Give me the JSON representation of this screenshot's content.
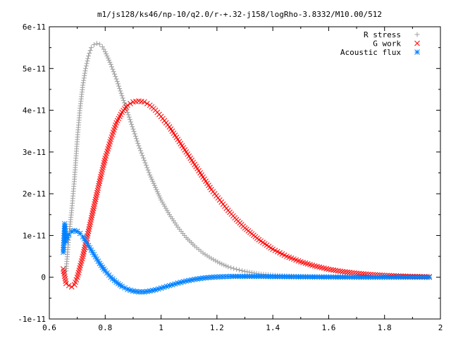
{
  "chart_data": {
    "type": "scatter",
    "title": "m1/js128/ks46/np-10/q2.0/r-+.32-j158/logRho-3.8332/M10.00/512",
    "xlabel": "",
    "ylabel": "",
    "xlim": [
      0.6,
      2.0
    ],
    "ylim": [
      -1e-11,
      6e-11
    ],
    "x_ticks": [
      0.6,
      0.8,
      1.0,
      1.2,
      1.4,
      1.6,
      1.8,
      2.0
    ],
    "x_tick_labels": [
      "0.6",
      "0.8",
      "1",
      "1.2",
      "1.4",
      "1.6",
      "1.8",
      "2"
    ],
    "y_ticks": [
      -1e-11,
      0,
      1e-11,
      2e-11,
      3e-11,
      4e-11,
      5e-11,
      6e-11
    ],
    "y_tick_labels": [
      "-1e-11",
      "0",
      "1e-11",
      "2e-11",
      "3e-11",
      "4e-11",
      "5e-11",
      "6e-11"
    ],
    "grid": false,
    "legend_position": "top-right",
    "series": [
      {
        "name": "R stress",
        "marker": "plus",
        "color": "#a0a0a0",
        "x": [
          0.65,
          0.66,
          0.67,
          0.68,
          0.69,
          0.7,
          0.71,
          0.72,
          0.73,
          0.74,
          0.75,
          0.76,
          0.77,
          0.78,
          0.79,
          0.8,
          0.82,
          0.84,
          0.86,
          0.88,
          0.9,
          0.92,
          0.94,
          0.96,
          0.98,
          1.0,
          1.03,
          1.06,
          1.09,
          1.12,
          1.15,
          1.18,
          1.21,
          1.24,
          1.27,
          1.3,
          1.35,
          1.4,
          1.45,
          1.5,
          1.55,
          1.6,
          1.65,
          1.7,
          1.75,
          1.8,
          1.85,
          1.9,
          1.96
        ],
        "y": [
          1e-12,
          1.5e-12,
          1e-11,
          1.6e-11,
          2.35e-11,
          3.3e-11,
          4.05e-11,
          4.6e-11,
          5e-11,
          5.3e-11,
          5.5e-11,
          5.57e-11,
          5.6e-11,
          5.58e-11,
          5.52e-11,
          5.4e-11,
          5.1e-11,
          4.75e-11,
          4.35e-11,
          3.95e-11,
          3.55e-11,
          3.15e-11,
          2.8e-11,
          2.45e-11,
          2.15e-11,
          1.85e-11,
          1.5e-11,
          1.2e-11,
          9.5e-12,
          7.5e-12,
          5.8e-12,
          4.5e-12,
          3.4e-12,
          2.5e-12,
          1.9e-12,
          1.4e-12,
          8e-13,
          5e-13,
          3e-13,
          2e-13,
          1.2e-13,
          8e-14,
          5e-14,
          3e-14,
          2e-14,
          1.5e-14,
          1e-14,
          5e-15,
          2e-15
        ]
      },
      {
        "name": "G work",
        "marker": "cross",
        "color": "#ff0000",
        "x": [
          0.65,
          0.66,
          0.67,
          0.68,
          0.69,
          0.7,
          0.72,
          0.74,
          0.76,
          0.78,
          0.8,
          0.82,
          0.84,
          0.86,
          0.88,
          0.9,
          0.92,
          0.94,
          0.96,
          0.98,
          1.0,
          1.03,
          1.06,
          1.09,
          1.12,
          1.15,
          1.18,
          1.21,
          1.24,
          1.27,
          1.3,
          1.35,
          1.4,
          1.45,
          1.5,
          1.55,
          1.6,
          1.65,
          1.7,
          1.75,
          1.8,
          1.85,
          1.9,
          1.96
        ],
        "y": [
          2e-12,
          -1.5e-12,
          -2e-12,
          -2.3e-12,
          -1.8e-12,
          0.0,
          5e-12,
          1.1e-11,
          1.7e-11,
          2.3e-11,
          2.85e-11,
          3.3e-11,
          3.7e-11,
          3.95e-11,
          4.12e-11,
          4.2e-11,
          4.22e-11,
          4.2e-11,
          4.12e-11,
          4e-11,
          3.85e-11,
          3.6e-11,
          3.3e-11,
          3e-11,
          2.7e-11,
          2.4e-11,
          2.1e-11,
          1.85e-11,
          1.6e-11,
          1.38e-11,
          1.18e-11,
          9e-12,
          6.7e-12,
          5e-12,
          3.7e-12,
          2.7e-12,
          1.9e-12,
          1.35e-12,
          9.5e-13,
          6.5e-13,
          4.5e-13,
          3e-13,
          2e-13,
          1.2e-13
        ]
      },
      {
        "name": "Acoustic flux",
        "marker": "star",
        "color": "#0080ff",
        "x": [
          0.65,
          0.655,
          0.66,
          0.665,
          0.67,
          0.68,
          0.69,
          0.7,
          0.71,
          0.72,
          0.73,
          0.74,
          0.76,
          0.78,
          0.8,
          0.82,
          0.84,
          0.86,
          0.88,
          0.9,
          0.92,
          0.94,
          0.96,
          0.98,
          1.0,
          1.03,
          1.06,
          1.09,
          1.12,
          1.15,
          1.18,
          1.21,
          1.25,
          1.3,
          1.35,
          1.4,
          1.5,
          1.6,
          1.7,
          1.8,
          1.9,
          1.96
        ],
        "y": [
          6e-12,
          1.28e-11,
          8.5e-12,
          9.5e-12,
          1.02e-11,
          1.1e-11,
          1.12e-11,
          1.1e-11,
          1.05e-11,
          9.7e-12,
          8.7e-12,
          7.6e-12,
          5.4e-12,
          3.3e-12,
          1.5e-12,
          0.0,
          -1.2e-12,
          -2.2e-12,
          -2.9e-12,
          -3.3e-12,
          -3.5e-12,
          -3.5e-12,
          -3.3e-12,
          -3e-12,
          -2.6e-12,
          -2e-12,
          -1.4e-12,
          -9e-13,
          -5e-13,
          -2e-13,
          0.0,
          1e-13,
          2e-13,
          2e-13,
          2e-13,
          1.5e-13,
          1e-13,
          5e-14,
          2e-14,
          1e-14,
          5e-15,
          0.0
        ]
      }
    ]
  }
}
